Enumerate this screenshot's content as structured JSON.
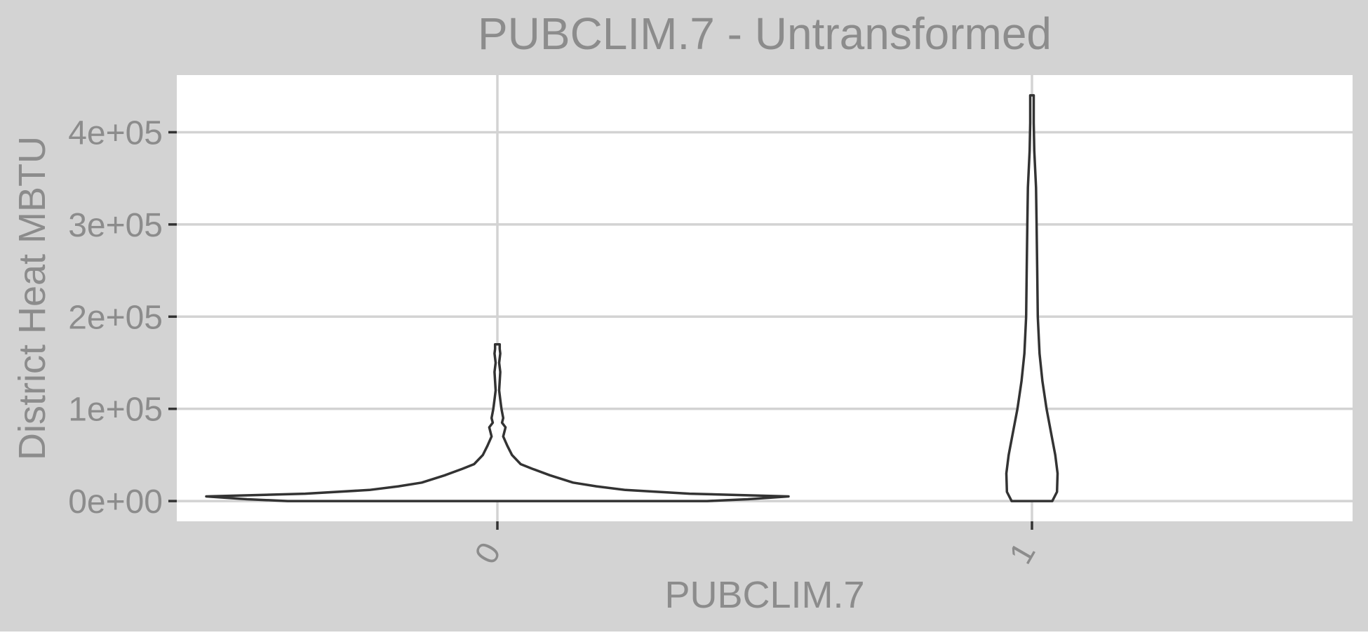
{
  "chart_data": {
    "type": "violin",
    "title": "PUBCLIM.7 - Untransformed",
    "xlabel": "PUBCLIM.7",
    "ylabel": "District Heat MBTU",
    "categories": [
      "0",
      "1"
    ],
    "y_ticks": [
      {
        "value": 0,
        "label": "0e+00"
      },
      {
        "value": 100000,
        "label": "1e+05"
      },
      {
        "value": 200000,
        "label": "2e+05"
      },
      {
        "value": 300000,
        "label": "3e+05"
      },
      {
        "value": 400000,
        "label": "4e+05"
      }
    ],
    "ylim": [
      -22000,
      462000
    ],
    "grid": true,
    "colors": {
      "page_background": "#d3d3d3",
      "panel_background": "#ffffff",
      "gridline": "#d3d3d3",
      "violin_outline": "#333333",
      "violin_fill": "#ffffff",
      "text": "#8c8c8c",
      "tick_mark": "#333333"
    },
    "series": [
      {
        "category": "0",
        "y_min": 0,
        "y_max": 170000,
        "density_profile": [
          [
            0,
            0.36
          ],
          [
            2000,
            0.43
          ],
          [
            5000,
            0.5
          ],
          [
            8000,
            0.33
          ],
          [
            12000,
            0.22
          ],
          [
            16000,
            0.17
          ],
          [
            20000,
            0.13
          ],
          [
            28000,
            0.09
          ],
          [
            35000,
            0.06
          ],
          [
            40000,
            0.04
          ],
          [
            50000,
            0.025
          ],
          [
            60000,
            0.017
          ],
          [
            70000,
            0.01
          ],
          [
            80000,
            0.014
          ],
          [
            85000,
            0.008
          ],
          [
            90000,
            0.01
          ],
          [
            100000,
            0.007
          ],
          [
            110000,
            0.005
          ],
          [
            120000,
            0.003
          ],
          [
            130000,
            0.004
          ],
          [
            140000,
            0.005
          ],
          [
            150000,
            0.003
          ],
          [
            160000,
            0.005
          ],
          [
            165000,
            0.004
          ],
          [
            170000,
            0.004
          ]
        ]
      },
      {
        "category": "1",
        "y_min": 0,
        "y_max": 440000,
        "density_profile": [
          [
            0,
            0.035
          ],
          [
            10000,
            0.043
          ],
          [
            30000,
            0.044
          ],
          [
            50000,
            0.04
          ],
          [
            70000,
            0.034
          ],
          [
            100000,
            0.025
          ],
          [
            130000,
            0.018
          ],
          [
            160000,
            0.013
          ],
          [
            200000,
            0.01
          ],
          [
            250000,
            0.009
          ],
          [
            300000,
            0.008
          ],
          [
            340000,
            0.007
          ],
          [
            380000,
            0.004
          ],
          [
            410000,
            0.003
          ],
          [
            440000,
            0.003
          ]
        ]
      }
    ]
  }
}
